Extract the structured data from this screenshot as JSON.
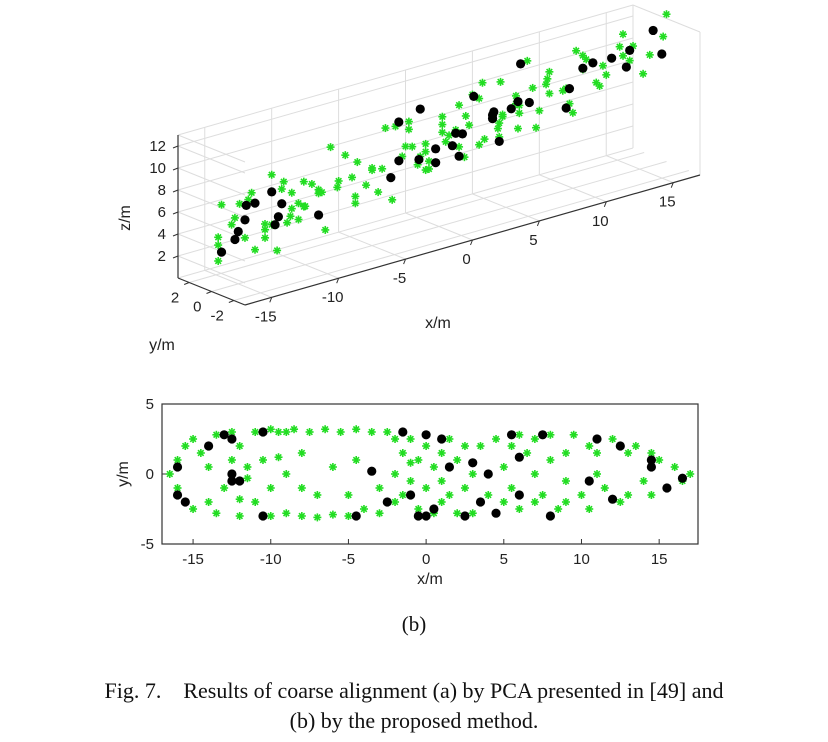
{
  "figure": {
    "subcaption": "(b)",
    "caption_line1": "Fig. 7.    Results of coarse alignment (a) by PCA presented in [49] and",
    "caption_line2": "(b) by the proposed method."
  },
  "colors": {
    "green": "#22dd22",
    "black": "#000000",
    "axis": "#333333",
    "grid": "#dddddd"
  },
  "chart_data": [
    {
      "type": "scatter",
      "projection": "3d",
      "title": "",
      "xlabel": "x/m",
      "ylabel": "y/m",
      "zlabel": "z/m",
      "xticks": [
        "-15",
        "-10",
        "-5",
        "0",
        "5",
        "10",
        "15"
      ],
      "yticks": [
        "2",
        "0",
        "-2"
      ],
      "zticks": [
        "2",
        "4",
        "6",
        "8",
        "10",
        "12"
      ],
      "xlim": [
        -17,
        17
      ],
      "ylim": [
        -3,
        3
      ],
      "zlim": [
        0,
        13
      ],
      "grid": true,
      "series": [
        {
          "marker": "asterisk",
          "color": "green",
          "shape": "approx_500_points_outlining_aircraft_hull"
        },
        {
          "marker": "dot",
          "color": "black",
          "shape": "approx_100_points_outlining_aircraft_hull"
        }
      ]
    },
    {
      "type": "scatter",
      "title": "",
      "xlabel": "x/m",
      "ylabel": "y/m",
      "xticks": [
        "-15",
        "-10",
        "-5",
        "0",
        "5",
        "10",
        "15"
      ],
      "yticks": [
        "5",
        "0",
        "-5"
      ],
      "xlim": [
        -17,
        17.5
      ],
      "ylim": [
        -5,
        5
      ],
      "grid": false,
      "series": [
        {
          "marker": "asterisk",
          "color": "green",
          "points": [
            [
              -16.5,
              0
            ],
            [
              -16,
              1
            ],
            [
              -16,
              -1
            ],
            [
              -15.5,
              2
            ],
            [
              -15.5,
              -2
            ],
            [
              -15,
              2.5
            ],
            [
              -15,
              -2.5
            ],
            [
              -14.5,
              1.5
            ],
            [
              -14,
              0.5
            ],
            [
              -14,
              -2
            ],
            [
              -13.5,
              2.8
            ],
            [
              -13.5,
              -2.8
            ],
            [
              -13,
              -1
            ],
            [
              -12.5,
              3
            ],
            [
              -12,
              2
            ],
            [
              -12,
              -3
            ],
            [
              -11.5,
              0.5
            ],
            [
              -11.5,
              -0.3
            ],
            [
              -11,
              -2
            ],
            [
              -11,
              3
            ],
            [
              -10.5,
              1
            ],
            [
              -10,
              3.2
            ],
            [
              -10,
              -3
            ],
            [
              -9.5,
              3
            ],
            [
              -9,
              -2.8
            ],
            [
              -9,
              3
            ],
            [
              -8.5,
              3.2
            ],
            [
              -8,
              -3
            ],
            [
              -7.5,
              3
            ],
            [
              -7,
              -3.1
            ],
            [
              -6.5,
              3.2
            ],
            [
              -6,
              -2.9
            ],
            [
              -5.5,
              3
            ],
            [
              -5,
              -3
            ],
            [
              -4.5,
              3.2
            ],
            [
              -4,
              -2.5
            ],
            [
              -3.5,
              3
            ],
            [
              -3,
              -2.8
            ],
            [
              -2.5,
              3
            ],
            [
              -2,
              -2
            ],
            [
              -2,
              0
            ],
            [
              -1.5,
              1.5
            ],
            [
              -1.5,
              -1.5
            ],
            [
              -1,
              2.5
            ],
            [
              -1,
              -0.5
            ],
            [
              -0.5,
              1
            ],
            [
              -0.5,
              -2.5
            ],
            [
              0,
              2
            ],
            [
              0,
              -1
            ],
            [
              0.5,
              0.5
            ],
            [
              0.5,
              -2.8
            ],
            [
              1,
              1.5
            ],
            [
              1,
              -2
            ],
            [
              1.5,
              2.5
            ],
            [
              1.5,
              -1.5
            ],
            [
              2,
              1
            ],
            [
              2,
              -2.8
            ],
            [
              2.5,
              2
            ],
            [
              2.5,
              -1
            ],
            [
              3,
              -2.8
            ],
            [
              3.5,
              2
            ],
            [
              3.5,
              -2
            ],
            [
              4,
              -1.5
            ],
            [
              4.5,
              2.5
            ],
            [
              4.5,
              -2.8
            ],
            [
              5,
              -2
            ],
            [
              5.5,
              2
            ],
            [
              5.5,
              -1
            ],
            [
              6,
              2.8
            ],
            [
              6,
              -2.5
            ],
            [
              6.5,
              1.5
            ],
            [
              7,
              -2
            ],
            [
              7,
              2.5
            ],
            [
              7.5,
              -1.5
            ],
            [
              8,
              2.8
            ],
            [
              8.5,
              -2.5
            ],
            [
              9,
              1.5
            ],
            [
              9,
              -2
            ],
            [
              9.5,
              2.8
            ],
            [
              10,
              -1.5
            ],
            [
              10.5,
              2
            ],
            [
              10.5,
              -2.5
            ],
            [
              11,
              1.5
            ],
            [
              11.5,
              -1
            ],
            [
              12,
              2.5
            ],
            [
              12.5,
              -2
            ],
            [
              13,
              1.5
            ],
            [
              13,
              -1.5
            ],
            [
              13.5,
              2
            ],
            [
              14,
              -0.5
            ],
            [
              14.5,
              1.5
            ],
            [
              14.5,
              -1.5
            ],
            [
              15,
              1
            ],
            [
              15.5,
              -1
            ],
            [
              16,
              0.5
            ],
            [
              16.5,
              -0.5
            ],
            [
              17,
              0
            ],
            [
              -8,
              1.5
            ],
            [
              -8,
              -1
            ],
            [
              -6,
              0.5
            ],
            [
              -4.5,
              1
            ],
            [
              -3,
              -1
            ],
            [
              -7,
              -1.5
            ],
            [
              -9,
              0
            ],
            [
              -2,
              2.5
            ],
            [
              -1,
              0.8
            ],
            [
              1,
              -0.5
            ],
            [
              3,
              0
            ],
            [
              5,
              0.5
            ],
            [
              7,
              0
            ],
            [
              8,
              1
            ],
            [
              9,
              -0.5
            ],
            [
              11,
              0
            ],
            [
              -12.5,
              1
            ],
            [
              -12,
              -1.8
            ],
            [
              -10,
              -1
            ],
            [
              -9.5,
              1.2
            ],
            [
              -5,
              -1.5
            ]
          ]
        },
        {
          "marker": "dot",
          "color": "black",
          "points": [
            [
              -16,
              0.5
            ],
            [
              -16,
              -1.5
            ],
            [
              -15.5,
              -2
            ],
            [
              -14,
              2
            ],
            [
              -12.5,
              2.5
            ],
            [
              -12.5,
              0
            ],
            [
              -12.5,
              -0.5
            ],
            [
              -12,
              -0.5
            ],
            [
              -10.5,
              3
            ],
            [
              -10.5,
              -3
            ],
            [
              -4.5,
              -3
            ],
            [
              -3.5,
              0.2
            ],
            [
              -2.5,
              -2
            ],
            [
              -1.5,
              3
            ],
            [
              -1,
              -1.5
            ],
            [
              -0.5,
              -3
            ],
            [
              0,
              2.8
            ],
            [
              0,
              -3
            ],
            [
              0.5,
              -2.5
            ],
            [
              1,
              2.5
            ],
            [
              1.5,
              0.5
            ],
            [
              2.5,
              -3
            ],
            [
              3.5,
              -2
            ],
            [
              4,
              0
            ],
            [
              4.5,
              -2.8
            ],
            [
              5.5,
              2.8
            ],
            [
              6,
              -1.5
            ],
            [
              7.5,
              2.8
            ],
            [
              8,
              -3
            ],
            [
              10.5,
              -0.5
            ],
            [
              11,
              2.5
            ],
            [
              12.5,
              2
            ],
            [
              12,
              -1.8
            ],
            [
              14.5,
              1
            ],
            [
              14.5,
              0.5
            ],
            [
              15.5,
              -1
            ],
            [
              16.5,
              -0.3
            ],
            [
              -13,
              2.8
            ],
            [
              3,
              0.8
            ],
            [
              6,
              1.2
            ]
          ]
        }
      ]
    }
  ]
}
